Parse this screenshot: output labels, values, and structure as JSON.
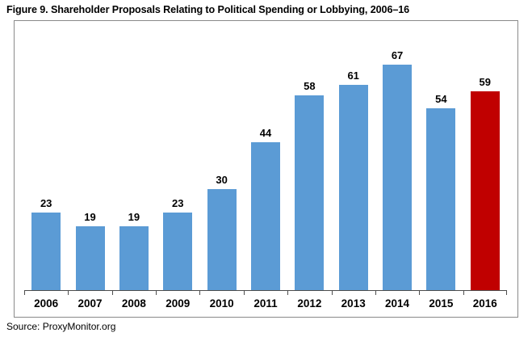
{
  "title": "Figure 9. Shareholder Proposals Relating to Political Spending or Lobbying, 2006–16",
  "source": "Source: ProxyMonitor.org",
  "colors": {
    "bar_default": "#5B9BD5",
    "bar_highlight": "#C00000",
    "axis": "#4d4d4d",
    "frame_border": "#8a8a8a",
    "text": "#000000"
  },
  "chart_data": {
    "type": "bar",
    "categories": [
      "2006",
      "2007",
      "2008",
      "2009",
      "2010",
      "2011",
      "2012",
      "2013",
      "2014",
      "2015",
      "2016"
    ],
    "values": [
      23,
      19,
      19,
      23,
      30,
      44,
      58,
      61,
      67,
      54,
      59
    ],
    "highlight_index": 10,
    "title": "Figure 9. Shareholder Proposals Relating to Political Spending or Lobbying, 2006–16",
    "xlabel": "",
    "ylabel": "",
    "ylim": [
      0,
      80
    ],
    "grid": false,
    "legend": false,
    "data_labels": true,
    "source": "Source: ProxyMonitor.org"
  }
}
